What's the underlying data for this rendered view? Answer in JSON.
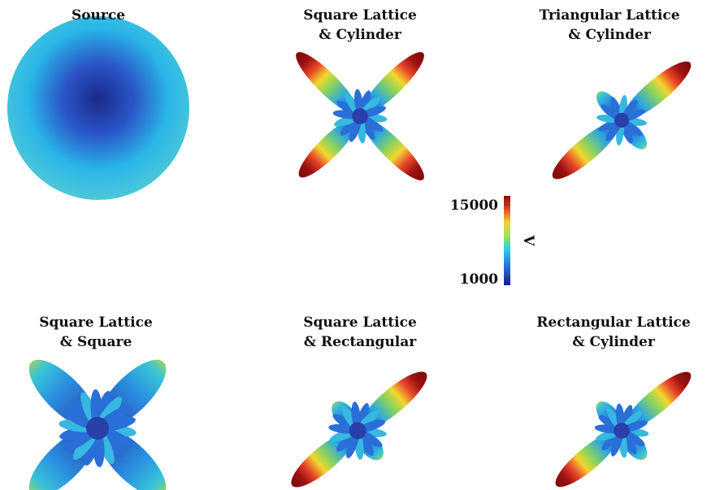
{
  "panels": [
    {
      "title": [
        "Source"
      ]
    },
    {
      "title": [
        "Square Lattice",
        "& Cylinder"
      ]
    },
    {
      "title": [
        "Triangular Lattice",
        "& Cylinder"
      ]
    },
    {
      "title": [
        "Square Lattice",
        "& Square"
      ]
    },
    {
      "title": [
        "Square Lattice",
        "& Rectangular"
      ]
    },
    {
      "title": [
        "Rectangular Lattice",
        "& Cylinder"
      ]
    }
  ],
  "colorbar": {
    "label": "V",
    "ticks": [
      15000,
      1000
    ]
  }
}
